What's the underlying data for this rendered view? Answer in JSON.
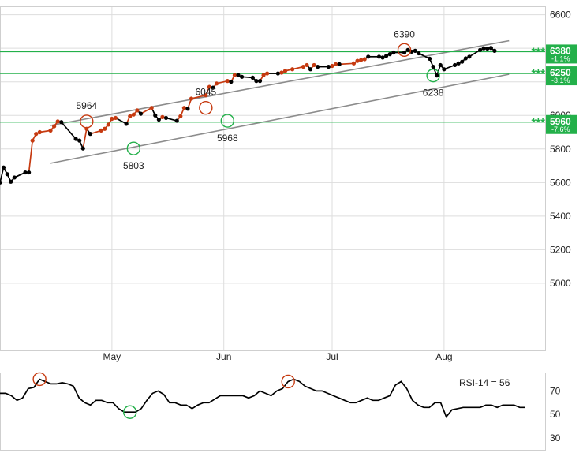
{
  "chart_data": [
    {
      "type": "line",
      "title": "",
      "xlabel": "",
      "ylabel": "",
      "ylim": [
        4600,
        6650
      ],
      "y_ticks": [
        "6600",
        "6400",
        "6200",
        "6000",
        "5800",
        "5600",
        "5400",
        "5200",
        "5000"
      ],
      "y_tick_values": [
        6600,
        6400,
        6200,
        6000,
        5800,
        5600,
        5400,
        5200,
        5000
      ],
      "x_ticks": [
        "May",
        "Jun",
        "Jul",
        "Aug"
      ],
      "x_tick_values": [
        "2025-05-01",
        "2025-06-01",
        "2025-07-01",
        "2025-08-01"
      ],
      "x_range": [
        "2025-03-31",
        "2025-08-29"
      ],
      "grid": true,
      "series": [
        {
          "x": [
            "2025-03-31",
            "2025-04-01",
            "2025-04-02",
            "2025-04-03",
            "2025-04-04",
            "2025-04-07",
            "2025-04-08",
            "2025-04-09",
            "2025-04-10",
            "2025-04-11",
            "2025-04-14",
            "2025-04-15",
            "2025-04-16",
            "2025-04-17",
            "2025-04-21",
            "2025-04-22",
            "2025-04-23",
            "2025-04-24",
            "2025-04-25",
            "2025-04-28",
            "2025-04-29",
            "2025-04-30",
            "2025-05-01",
            "2025-05-02",
            "2025-05-05",
            "2025-05-06",
            "2025-05-07",
            "2025-05-08",
            "2025-05-09",
            "2025-05-12",
            "2025-05-13",
            "2025-05-14",
            "2025-05-15",
            "2025-05-16",
            "2025-05-19",
            "2025-05-20",
            "2025-05-21",
            "2025-05-22",
            "2025-05-23",
            "2025-05-27",
            "2025-05-28",
            "2025-05-29",
            "2025-05-30",
            "2025-06-02",
            "2025-06-03",
            "2025-06-04",
            "2025-06-05",
            "2025-06-06",
            "2025-06-09",
            "2025-06-10",
            "2025-06-11",
            "2025-06-12",
            "2025-06-13",
            "2025-06-16",
            "2025-06-17",
            "2025-06-18",
            "2025-06-20",
            "2025-06-23",
            "2025-06-24",
            "2025-06-25",
            "2025-06-26",
            "2025-06-27",
            "2025-06-30",
            "2025-07-01",
            "2025-07-02",
            "2025-07-03",
            "2025-07-07",
            "2025-07-08",
            "2025-07-09",
            "2025-07-10",
            "2025-07-11",
            "2025-07-14",
            "2025-07-15",
            "2025-07-16",
            "2025-07-17",
            "2025-07-18",
            "2025-07-21",
            "2025-07-22",
            "2025-07-23",
            "2025-07-24",
            "2025-07-25",
            "2025-07-28",
            "2025-07-29",
            "2025-07-30",
            "2025-07-31",
            "2025-08-01",
            "2025-08-04",
            "2025-08-05",
            "2025-08-06",
            "2025-08-07",
            "2025-08-08",
            "2025-08-11",
            "2025-08-12",
            "2025-08-13",
            "2025-08-14",
            "2025-08-15"
          ],
          "values": [
            5600,
            5690,
            5650,
            5605,
            5630,
            5660,
            5660,
            5850,
            5890,
            5900,
            5910,
            5935,
            5964,
            5960,
            5860,
            5850,
            5803,
            5920,
            5890,
            5910,
            5920,
            5945,
            5980,
            5985,
            5950,
            5995,
            6005,
            6030,
            6010,
            6045,
            6000,
            5975,
            5990,
            5985,
            5968,
            5995,
            6045,
            6040,
            6100,
            6120,
            6170,
            6165,
            6190,
            6205,
            6200,
            6240,
            6240,
            6230,
            6225,
            6205,
            6205,
            6240,
            6250,
            6250,
            6255,
            6265,
            6275,
            6290,
            6300,
            6275,
            6300,
            6290,
            6290,
            6295,
            6305,
            6305,
            6310,
            6325,
            6330,
            6335,
            6350,
            6350,
            6345,
            6355,
            6365,
            6375,
            6375,
            6390,
            6380,
            6385,
            6370,
            6338,
            6290,
            6238,
            6300,
            6275,
            6300,
            6310,
            6320,
            6340,
            6350,
            6390,
            6400,
            6398,
            6402,
            6385
          ]
        }
      ],
      "annotations": [
        {
          "text": "5964",
          "date": "2025-04-24",
          "value": 5964
        },
        {
          "text": "5803",
          "date": "2025-05-07",
          "value": 5803
        },
        {
          "text": "6045",
          "date": "2025-05-27",
          "value": 6045
        },
        {
          "text": "5968",
          "date": "2025-06-02",
          "value": 5968
        },
        {
          "text": "6390",
          "date": "2025-07-21",
          "value": 6390
        },
        {
          "text": "6238",
          "date": "2025-07-29",
          "value": 6238
        }
      ],
      "levels": [
        {
          "value": 6380,
          "label": "6380",
          "pct": "-1.1%",
          "stars": "***"
        },
        {
          "value": 6250,
          "label": "6250",
          "pct": "-3.1%",
          "stars": "***"
        },
        {
          "value": 5960,
          "label": "5960",
          "pct": "-7.6%",
          "stars": "***"
        }
      ],
      "channel": [
        {
          "from": {
            "date": "2025-04-14",
            "value": 5940
          },
          "to": {
            "date": "2025-08-19",
            "value": 6445
          }
        },
        {
          "from": {
            "date": "2025-04-14",
            "value": 5715
          },
          "to": {
            "date": "2025-08-19",
            "value": 6245
          }
        }
      ],
      "colors": {
        "price": "#000000",
        "trend_up": "#c63a10",
        "level": "#23b04a",
        "channel": "#8c8c8c",
        "grid": "#dddddd",
        "high_marker": "#c63a10",
        "low_marker": "#23b04a"
      }
    },
    {
      "type": "line",
      "title": "",
      "label": "RSI-14 = 56",
      "ylim": [
        20,
        85
      ],
      "y_ticks": [
        "70",
        "50",
        "30"
      ],
      "y_tick_values": [
        70,
        50,
        30
      ],
      "series": [
        {
          "values": [
            68,
            68,
            66,
            62,
            64,
            72,
            73,
            80,
            78,
            76,
            76,
            77,
            76,
            74,
            64,
            60,
            58,
            62,
            62,
            60,
            60,
            55,
            52,
            52,
            52,
            55,
            62,
            68,
            70,
            67,
            60,
            60,
            58,
            58,
            55,
            58,
            60,
            60,
            63,
            66,
            66,
            66,
            66,
            66,
            64,
            66,
            70,
            68,
            66,
            70,
            72,
            78,
            80,
            78,
            74,
            72,
            70,
            70,
            68,
            66,
            64,
            62,
            60,
            60,
            62,
            64,
            62,
            62,
            64,
            66,
            75,
            78,
            72,
            62,
            58,
            56,
            56,
            60,
            60,
            48,
            54,
            55,
            56,
            56,
            56,
            56,
            58,
            58,
            56,
            58,
            58,
            58,
            56,
            56
          ]
        }
      ],
      "markers": [
        {
          "index": 7,
          "kind": "high"
        },
        {
          "index": 23,
          "kind": "low"
        },
        {
          "index": 51,
          "kind": "high"
        }
      ],
      "colors": {
        "line": "#000000",
        "high_marker": "#c63a10",
        "low_marker": "#23b04a"
      }
    }
  ]
}
